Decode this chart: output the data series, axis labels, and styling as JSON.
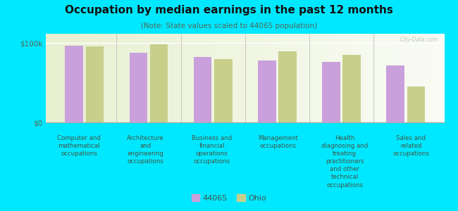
{
  "title": "Occupation by median earnings in the past 12 months",
  "subtitle": "(Note: State values scaled to 44065 population)",
  "categories": [
    "Computer and\nmathematical\noccupations",
    "Architecture\nand\nengineering\noccupations",
    "Business and\nfinancial\noperations\noccupations",
    "Management\noccupations",
    "Health\ndiagnosing and\ntreating\npractitioners\nand other\ntechnical\noccupations",
    "Sales and\nrelated\noccupations"
  ],
  "values_44065": [
    97000,
    88000,
    83000,
    78000,
    76000,
    72000
  ],
  "values_ohio": [
    96000,
    99000,
    80000,
    90000,
    85000,
    45000
  ],
  "color_44065": "#c9a0dc",
  "color_ohio": "#c8cf8a",
  "background_outer": "#00e8ff",
  "background_plot_top": "#e8f0d0",
  "background_plot_bottom": "#f5f8ec",
  "ylabel_ticks": [
    "$0",
    "$100k"
  ],
  "ytick_vals": [
    0,
    100000
  ],
  "ylim": [
    0,
    112000
  ],
  "legend_label_44065": "44065",
  "legend_label_ohio": "Ohio",
  "watermark": "City-Data.com",
  "bar_width": 0.28,
  "tick_color": "#556655",
  "label_color": "#445544"
}
